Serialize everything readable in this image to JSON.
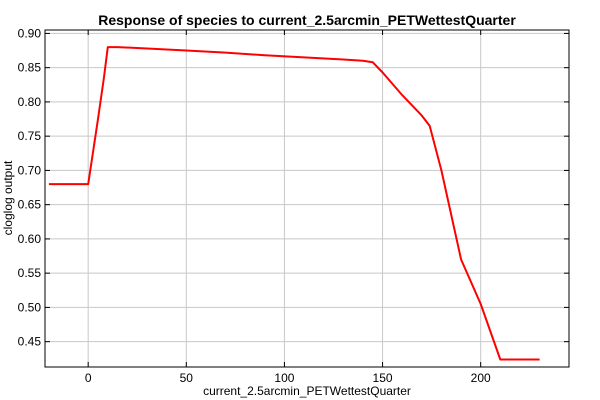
{
  "chart_data": {
    "type": "line",
    "title": "Response of species to current_2.5arcmin_PETWettestQuarter",
    "xlabel": "current_2.5arcmin_PETWettestQuarter",
    "ylabel": "cloglog output",
    "xlim": [
      -22,
      245
    ],
    "ylim": [
      0.413,
      0.905
    ],
    "x_ticks": [
      0,
      50,
      100,
      150,
      200
    ],
    "y_ticks": [
      0.45,
      0.5,
      0.55,
      0.6,
      0.65,
      0.7,
      0.75,
      0.8,
      0.85,
      0.9
    ],
    "y_tick_labels": [
      "0.45",
      "0.50",
      "0.55",
      "0.60",
      "0.65",
      "0.70",
      "0.75",
      "0.80",
      "0.85",
      "0.90"
    ],
    "grid": true,
    "series": [
      {
        "color": "#ff0000",
        "x": [
          -20,
          0,
          5,
          8,
          10,
          15,
          30,
          50,
          70,
          90,
          110,
          130,
          140,
          145,
          150,
          160,
          170,
          174,
          180,
          190,
          200,
          210,
          220,
          230
        ],
        "y": [
          0.68,
          0.68,
          0.775,
          0.835,
          0.88,
          0.88,
          0.878,
          0.875,
          0.872,
          0.868,
          0.865,
          0.862,
          0.86,
          0.858,
          0.843,
          0.81,
          0.78,
          0.765,
          0.7,
          0.57,
          0.505,
          0.424,
          0.424,
          0.424
        ]
      }
    ]
  }
}
